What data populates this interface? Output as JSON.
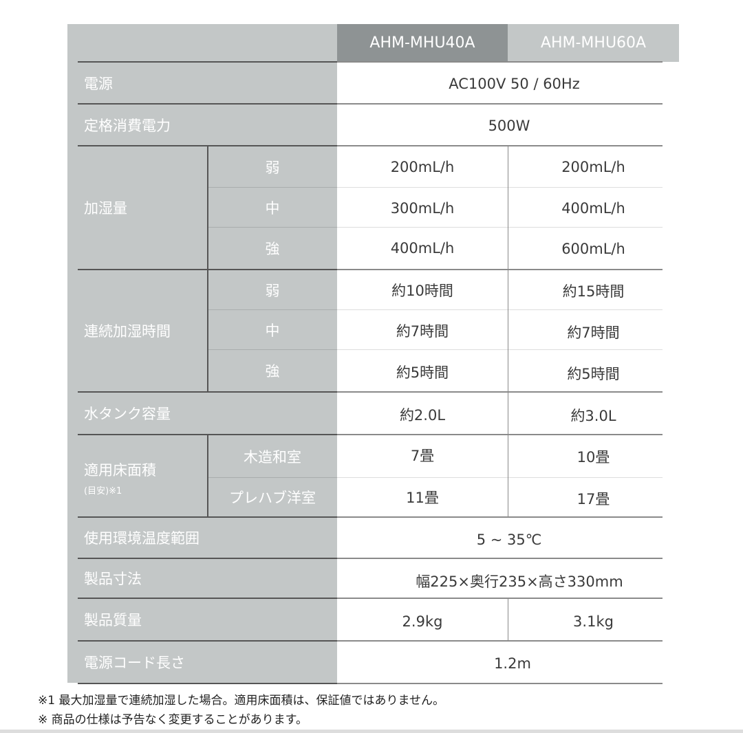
{
  "header": {
    "model_a": "AHM-MHU40A",
    "model_b": "AHM-MHU60A"
  },
  "rows": {
    "power": {
      "label": "電源",
      "value": "AC100V 50 / 60Hz"
    },
    "consumption": {
      "label": "定格消費電力",
      "value": "500W"
    },
    "humidify": {
      "label": "加湿量",
      "sub": [
        {
          "level": "弱",
          "a": "200mL/h",
          "b": "200mL/h"
        },
        {
          "level": "中",
          "a": "300mL/h",
          "b": "400mL/h"
        },
        {
          "level": "強",
          "a": "400mL/h",
          "b": "600mL/h"
        }
      ]
    },
    "continuous": {
      "label": "連続加湿時間",
      "sub": [
        {
          "level": "弱",
          "a": "約10時間",
          "b": "約15時間"
        },
        {
          "level": "中",
          "a": "約7時間",
          "b": "約7時間"
        },
        {
          "level": "強",
          "a": "約5時間",
          "b": "約5時間"
        }
      ]
    },
    "tank": {
      "label": "水タンク容量",
      "a": "約2.0L",
      "b": "約3.0L"
    },
    "area": {
      "label": "適用床面積",
      "note": "(目安)※1",
      "sub": [
        {
          "level": "木造和室",
          "a": "7畳",
          "b": "10畳"
        },
        {
          "level": "プレハブ洋室",
          "a": "11畳",
          "b": "17畳"
        }
      ]
    },
    "temp": {
      "label": "使用環境温度範囲",
      "value": "5 ~ 35℃"
    },
    "size": {
      "label": "製品寸法",
      "value": "幅225×奥行235×高さ330mm"
    },
    "weight": {
      "label": "製品質量",
      "a": "2.9kg",
      "b": "3.1kg"
    },
    "cord": {
      "label": "電源コード長さ",
      "value": "1.2m"
    }
  },
  "footnotes": [
    "※1 最大加湿量で連続加湿した場合。適用床面積は、保証値ではありません。",
    "※ 商品の仕様は予告なく変更することがあります。"
  ]
}
